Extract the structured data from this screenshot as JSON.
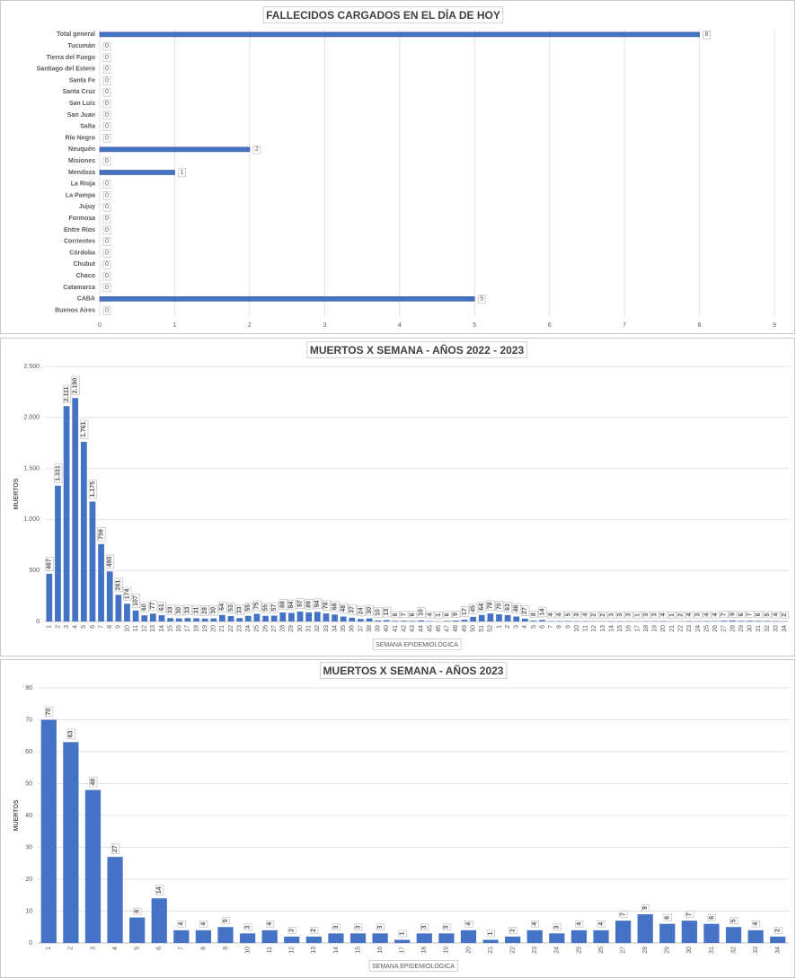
{
  "chart_data": [
    {
      "type": "bar",
      "orientation": "horizontal",
      "title": "FALLECIDOS CARGADOS EN EL DÍA DE HOY",
      "color": "#4472c4",
      "grid": true,
      "categories": [
        "Total general",
        "Tucumán",
        "Tierra del Fuego",
        "Santiago del Estero",
        "Santa Fe",
        "Santa Cruz",
        "San Luis",
        "San Juan",
        "Salta",
        "Río Negro",
        "Neuquén",
        "Misiones",
        "Mendoza",
        "La Rioja",
        "La Pampa",
        "Jujuy",
        "Formosa",
        "Entre Ríos",
        "Corrientes",
        "Córdoba",
        "Chubut",
        "Chaco",
        "Catamarca",
        "CABA",
        "Buenos Aires"
      ],
      "values": [
        8,
        0,
        0,
        0,
        0,
        0,
        0,
        0,
        0,
        0,
        2,
        0,
        1,
        0,
        0,
        0,
        0,
        0,
        0,
        0,
        0,
        0,
        0,
        5,
        0
      ],
      "xlim": [
        0,
        9
      ],
      "xticks": [
        0,
        1,
        2,
        3,
        4,
        5,
        6,
        7,
        8,
        9
      ]
    },
    {
      "type": "bar",
      "title": "MUERTOS X SEMANA - AÑOS 2022 - 2023",
      "ylabel": "MUERTOS",
      "xlabel": "SEMANA EPIDEMIOLÓGICA",
      "color": "#4472c4",
      "grid": true,
      "categories": [
        "1",
        "2",
        "3",
        "4",
        "5",
        "6",
        "7",
        "8",
        "9",
        "10",
        "11",
        "12",
        "13",
        "14",
        "15",
        "16",
        "17",
        "18",
        "19",
        "20",
        "21",
        "22",
        "23",
        "24",
        "25",
        "26",
        "27",
        "28",
        "29",
        "30",
        "31",
        "32",
        "33",
        "34",
        "35",
        "36",
        "37",
        "38",
        "39",
        "40",
        "41",
        "42",
        "43",
        "44",
        "45",
        "46",
        "47",
        "48",
        "49",
        "50",
        "51",
        "52",
        "1",
        "2",
        "3",
        "4",
        "5",
        "6",
        "7",
        "8",
        "9",
        "10",
        "11",
        "12",
        "13",
        "14",
        "15",
        "16",
        "17",
        "18",
        "19",
        "20",
        "21",
        "22",
        "23",
        "24",
        "25",
        "26",
        "27",
        "28",
        "29",
        "30",
        "31",
        "32",
        "33",
        "34"
      ],
      "values": [
        467,
        1331,
        2111,
        2190,
        1761,
        1175,
        759,
        490,
        261,
        174,
        107,
        60,
        77,
        61,
        33,
        30,
        33,
        31,
        28,
        30,
        64,
        53,
        33,
        55,
        75,
        55,
        57,
        88,
        84,
        97,
        89,
        94,
        78,
        68,
        48,
        37,
        24,
        30,
        10,
        13,
        6,
        7,
        6,
        10,
        4,
        1,
        6,
        9,
        17,
        45,
        64,
        78,
        70,
        63,
        48,
        27,
        8,
        14,
        4,
        4,
        5,
        3,
        4,
        2,
        2,
        3,
        3,
        3,
        1,
        3,
        3,
        4,
        1,
        2,
        4,
        3,
        4,
        4,
        7,
        9,
        6,
        7,
        6,
        5,
        4,
        2
      ],
      "value_labels": [
        "467",
        "1.331",
        "2.111",
        "2.190",
        "1.761",
        "1.175",
        "759",
        "490",
        "261",
        "174",
        "107",
        "60",
        "77",
        "61",
        "33",
        "30",
        "33",
        "31",
        "28",
        "30",
        "64",
        "53",
        "33",
        "55",
        "75",
        "55",
        "57",
        "88",
        "84",
        "97",
        "89",
        "94",
        "78",
        "68",
        "48",
        "37",
        "24",
        "30",
        "10",
        "13",
        "6",
        "7",
        "6",
        "10",
        "4",
        "1",
        "6",
        "9",
        "17",
        "45",
        "64",
        "78",
        "70",
        "63",
        "48",
        "27",
        "8",
        "14",
        "4",
        "4",
        "5",
        "3",
        "4",
        "2",
        "2",
        "3",
        "3",
        "3",
        "1",
        "3",
        "3",
        "4",
        "1",
        "2",
        "4",
        "3",
        "4",
        "4",
        "7",
        "9",
        "6",
        "7",
        "6",
        "5",
        "4",
        "2"
      ],
      "ylim": [
        0,
        2500
      ],
      "yticks": [
        0,
        500,
        {
          "value": 1000,
          "label": "1.000"
        },
        {
          "value": 1500,
          "label": "1.500"
        },
        {
          "value": 2000,
          "label": "2.000"
        },
        {
          "value": 2500,
          "label": "2.500"
        }
      ]
    },
    {
      "type": "bar",
      "title": "MUERTOS X SEMANA - AÑOS 2023",
      "ylabel": "MUERTOS",
      "xlabel": "SEMANA EPIDEMIOLÓGICA",
      "color": "#4472c4",
      "grid": true,
      "categories": [
        "1",
        "2",
        "3",
        "4",
        "5",
        "6",
        "7",
        "8",
        "9",
        "10",
        "11",
        "12",
        "13",
        "14",
        "15",
        "16",
        "17",
        "18",
        "19",
        "20",
        "21",
        "22",
        "23",
        "24",
        "25",
        "26",
        "27",
        "28",
        "29",
        "30",
        "31",
        "32",
        "33",
        "34"
      ],
      "values": [
        70,
        63,
        48,
        27,
        8,
        14,
        4,
        4,
        5,
        3,
        4,
        2,
        2,
        3,
        3,
        3,
        1,
        3,
        3,
        4,
        1,
        2,
        4,
        3,
        4,
        4,
        7,
        9,
        6,
        7,
        6,
        5,
        4,
        2
      ],
      "ylim": [
        0,
        80
      ],
      "yticks": [
        0,
        10,
        20,
        30,
        40,
        50,
        60,
        70,
        80
      ]
    }
  ]
}
